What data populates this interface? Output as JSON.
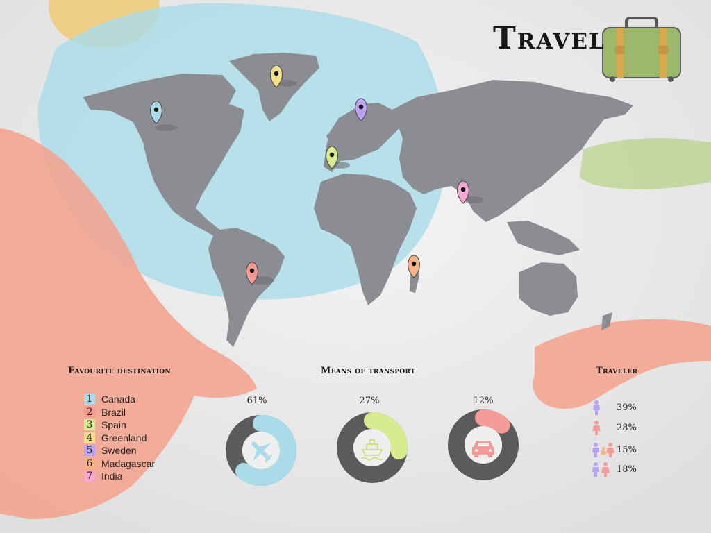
{
  "title": "Travel",
  "destinations": {
    "title": "Favourite destination",
    "items": [
      {
        "num": "1",
        "label": "Canada",
        "color": "#a9dce8"
      },
      {
        "num": "2",
        "label": "Brazil",
        "color": "#f49a90"
      },
      {
        "num": "3",
        "label": "Spain",
        "color": "#d8ec8f"
      },
      {
        "num": "4",
        "label": "Greenland",
        "color": "#f7e08c"
      },
      {
        "num": "5",
        "label": "Sweden",
        "color": "#b9a2ee"
      },
      {
        "num": "6",
        "label": "Madagascar",
        "color": "#f7b489"
      },
      {
        "num": "7",
        "label": "India",
        "color": "#f7a7d3"
      }
    ]
  },
  "transport": {
    "title": "Means of transport",
    "items": [
      {
        "pct": "61%",
        "value": 61,
        "icon": "airplane-icon",
        "color": "#a9dce8"
      },
      {
        "pct": "27%",
        "value": 27,
        "icon": "ship-icon",
        "color": "#d8ec8f"
      },
      {
        "pct": "12%",
        "value": 12,
        "icon": "car-icon",
        "color": "#f59b97"
      }
    ]
  },
  "traveler": {
    "title": "Traveler",
    "items": [
      {
        "pct": "39%",
        "icon": "person-purple-icon"
      },
      {
        "pct": "28%",
        "icon": "person-pink-icon"
      },
      {
        "pct": "15%",
        "icon": "family-purple-pink-icon"
      },
      {
        "pct": "18%",
        "icon": "couple-purple-pink-icon"
      }
    ]
  },
  "colors": {
    "map_land": "#8b8d92",
    "blue_wash": "#a9dce8",
    "coral_wash": "#f6a18c",
    "green_wash": "#b9d38e",
    "yellow_wash": "#f1c566",
    "ring_track": "#5b5b5b",
    "suitcase": "#9bb86b"
  }
}
